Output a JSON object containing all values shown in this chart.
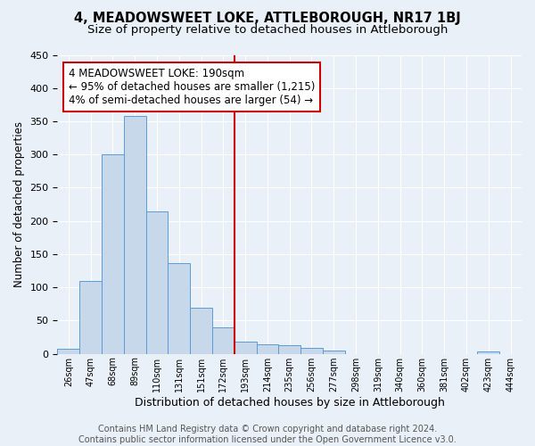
{
  "title": "4, MEADOWSWEET LOKE, ATTLEBOROUGH, NR17 1BJ",
  "subtitle": "Size of property relative to detached houses in Attleborough",
  "xlabel": "Distribution of detached houses by size in Attleborough",
  "ylabel": "Number of detached properties",
  "bin_labels": [
    "26sqm",
    "47sqm",
    "68sqm",
    "89sqm",
    "110sqm",
    "131sqm",
    "151sqm",
    "172sqm",
    "193sqm",
    "214sqm",
    "235sqm",
    "256sqm",
    "277sqm",
    "298sqm",
    "319sqm",
    "340sqm",
    "360sqm",
    "381sqm",
    "402sqm",
    "423sqm",
    "444sqm"
  ],
  "bar_heights": [
    8,
    110,
    300,
    358,
    214,
    136,
    70,
    40,
    18,
    14,
    13,
    9,
    5,
    0,
    0,
    0,
    0,
    0,
    0,
    3,
    0
  ],
  "bar_color": "#c8d8eb",
  "bar_edge_color": "#5b9bd5",
  "vline_x": 8,
  "vline_color": "#cc0000",
  "annotation_line1": "4 MEADOWSWEET LOKE: 190sqm",
  "annotation_line2": "← 95% of detached houses are smaller (1,215)",
  "annotation_line3": "4% of semi-detached houses are larger (54) →",
  "annotation_box_color": "#cc0000",
  "annotation_box_facecolor": "white",
  "ylim": [
    0,
    450
  ],
  "yticks": [
    0,
    50,
    100,
    150,
    200,
    250,
    300,
    350,
    400,
    450
  ],
  "footer_text": "Contains HM Land Registry data © Crown copyright and database right 2024.\nContains public sector information licensed under the Open Government Licence v3.0.",
  "bg_color": "#eaf0f8",
  "grid_color": "white",
  "title_fontsize": 10.5,
  "subtitle_fontsize": 9.5,
  "annotation_fontsize": 8.5,
  "footer_fontsize": 7
}
